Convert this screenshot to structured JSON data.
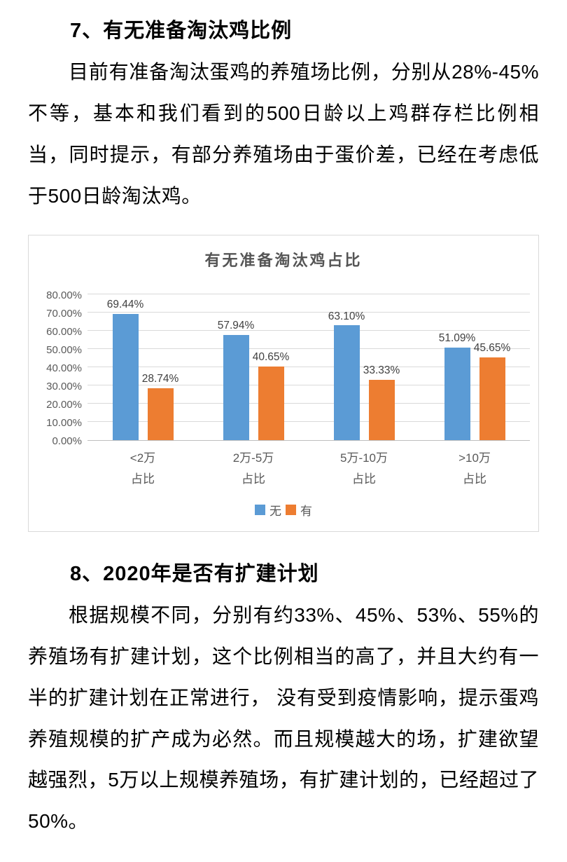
{
  "section7": {
    "heading": "7、有无准备淘汰鸡比例",
    "paragraph": "目前有准备淘汰蛋鸡的养殖场比例，分别从28%-45%不等，基本和我们看到的500日龄以上鸡群存栏比例相当，同时提示，有部分养殖场由于蛋价差，已经在考虑低于500日龄淘汰鸡。"
  },
  "section8": {
    "heading": "8、2020年是否有扩建计划",
    "paragraph": "根据规模不同，分别有约33%、45%、53%、55%的养殖场有扩建计划，这个比例相当的高了，并且大约有一半的扩建计划在正常进行， 没有受到疫情影响，提示蛋鸡养殖规模的扩产成为必然。而且规模越大的场，扩建欲望越强烈，5万以上规模养殖场，有扩建计划的，已经超过了50%。"
  },
  "chart_data": {
    "type": "bar",
    "title": "有无准备淘汰鸡占比",
    "categories": [
      "<2万",
      "2万-5万",
      "5万-10万",
      ">10万"
    ],
    "category_sublabel": "占比",
    "series": [
      {
        "name": "无",
        "color": "#5B9BD5",
        "values": [
          69.44,
          57.94,
          63.1,
          51.09
        ]
      },
      {
        "name": "有",
        "color": "#ED7D31",
        "values": [
          28.74,
          40.65,
          33.33,
          45.65
        ]
      }
    ],
    "data_labels": [
      [
        "69.44%",
        "57.94%",
        "63.10%",
        "51.09%"
      ],
      [
        "28.74%",
        "40.65%",
        "33.33%",
        "45.65%"
      ]
    ],
    "y_ticks": [
      "0.00%",
      "10.00%",
      "20.00%",
      "30.00%",
      "40.00%",
      "50.00%",
      "60.00%",
      "70.00%",
      "80.00%"
    ],
    "ylim": [
      0,
      80
    ],
    "xlabel": "",
    "ylabel": "",
    "grid": true,
    "legend_position": "bottom"
  },
  "colors": {
    "series_none": "#5B9BD5",
    "series_yes": "#ED7D31",
    "axis_text": "#595959",
    "gridline": "#d9d9d9"
  }
}
